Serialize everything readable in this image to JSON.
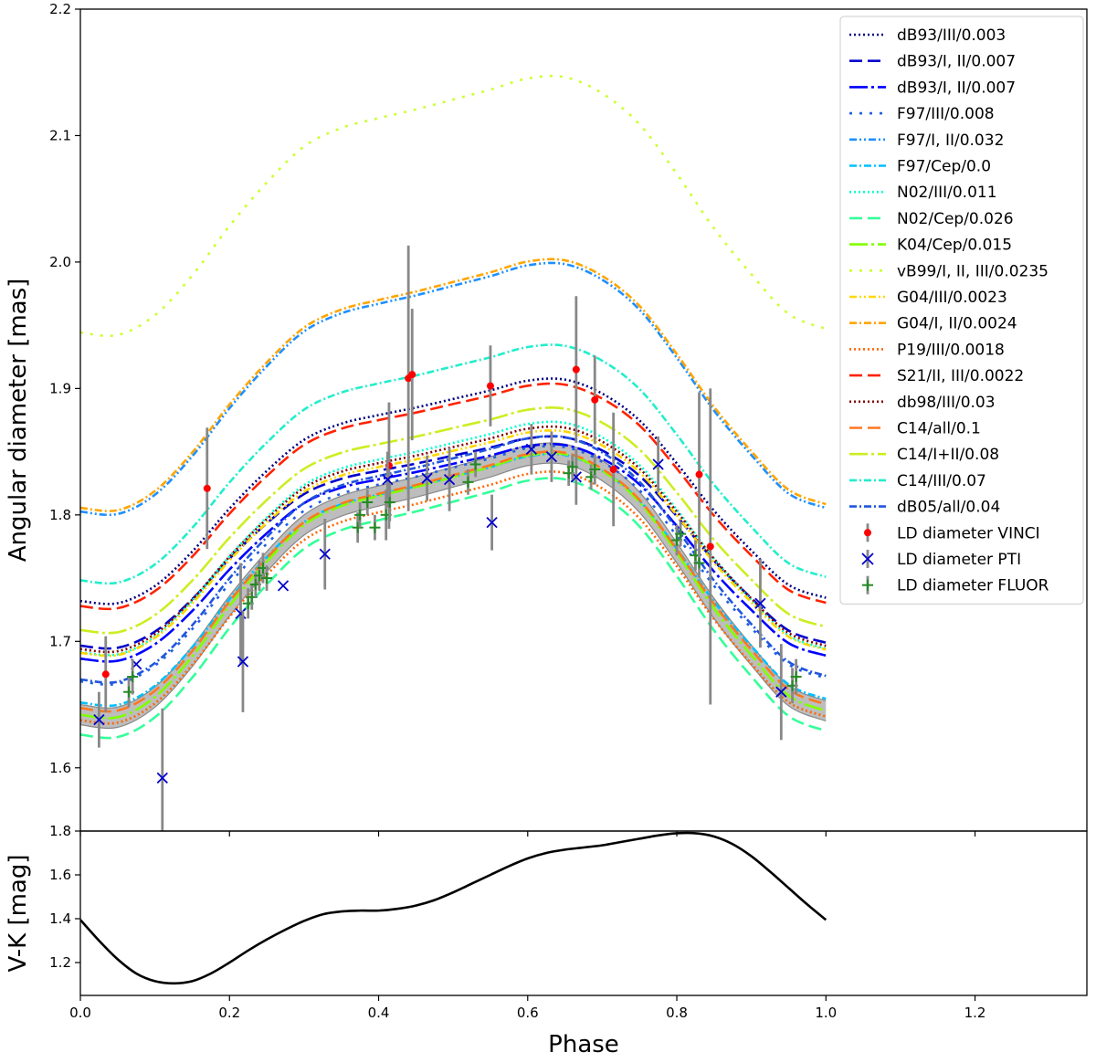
{
  "chart_data": [
    {
      "type": "line",
      "panel": "top",
      "xlabel": "",
      "ylabel": "Angular diameter [mas]",
      "xlim": [
        0.0,
        1.35
      ],
      "ylim": [
        1.55,
        2.2
      ],
      "yticks": [
        1.6,
        1.7,
        1.8,
        1.9,
        2.0,
        2.1,
        2.2
      ],
      "ytick_labels": [
        "1.6",
        "1.7",
        "1.8",
        "1.9",
        "2.0",
        "2.1",
        "2.2"
      ],
      "legend_position": "top-right",
      "base_curve": {
        "phase": [
          0.0,
          0.05,
          0.1,
          0.15,
          0.2,
          0.25,
          0.3,
          0.35,
          0.4,
          0.45,
          0.5,
          0.55,
          0.6,
          0.65,
          0.7,
          0.75,
          0.8,
          0.85,
          0.9,
          0.95,
          1.0
        ],
        "diameter": [
          1.642,
          1.64,
          1.656,
          1.688,
          1.728,
          1.763,
          1.792,
          1.807,
          1.815,
          1.822,
          1.83,
          1.838,
          1.847,
          1.848,
          1.835,
          1.81,
          1.77,
          1.726,
          1.689,
          1.657,
          1.645
        ]
      },
      "confidence_band": {
        "label": "",
        "half_width_mas": 0.008,
        "fill": "#bdbdbd",
        "edge": "#888888"
      },
      "series": [
        {
          "name": "dB93/III/0.003",
          "color": "#000080",
          "dash": "2,3",
          "width": 2.6,
          "offset": 0.073,
          "amp": 0.85
        },
        {
          "name": "dB93/I, II/0.007",
          "color": "#0000cd",
          "dash": "14,6",
          "width": 2.6,
          "offset": 0.032,
          "amp": 0.8
        },
        {
          "name": "dB93/I, II/0.007",
          "color": "#0000ff",
          "dash": "20,4,3,4",
          "width": 2.6,
          "offset": 0.024,
          "amp": 0.82
        },
        {
          "name": "F97/III/0.008",
          "color": "#1f5fe0",
          "dash": "3,8",
          "width": 2.6,
          "offset": 0.015,
          "amp": 0.9
        },
        {
          "name": "F97/I, II/0.032",
          "color": "#1e90ff",
          "dash": "8,3,2,3,2,3",
          "width": 2.6,
          "offset": 0.155,
          "amp": 0.95
        },
        {
          "name": "F97/Cep/0.0",
          "color": "#00bfff",
          "dash": "8,3,2,3",
          "width": 2.6,
          "offset": 0.004,
          "amp": 0.95
        },
        {
          "name": "N02/III/0.011",
          "color": "#00ffd0",
          "dash": "2,3",
          "width": 2.6,
          "offset": 0.036,
          "amp": 0.88
        },
        {
          "name": "N02/Cep/0.026",
          "color": "#33ff99",
          "dash": "14,6",
          "width": 2.6,
          "offset": -0.018,
          "amp": 0.98
        },
        {
          "name": "K04/Cep/0.015",
          "color": "#80ff00",
          "dash": "20,4,3,4",
          "width": 2.6,
          "offset": 0.0,
          "amp": 1.0
        },
        {
          "name": "vB99/I, II, III/0.0235",
          "color": "#ccff33",
          "dash": "3,8",
          "width": 2.6,
          "offset": 0.3,
          "amp": 0.98
        },
        {
          "name": "G04/III/0.0023",
          "color": "#ffd700",
          "dash": "8,3,2,3,2,3",
          "width": 2.6,
          "offset": 0.032,
          "amp": 0.85
        },
        {
          "name": "G04/I, II/0.0024",
          "color": "#ffa500",
          "dash": "8,3,2,3",
          "width": 2.6,
          "offset": 0.158,
          "amp": 0.95
        },
        {
          "name": "P19/III/0.0018",
          "color": "#ff6600",
          "dash": "2,3",
          "width": 2.6,
          "offset": -0.01,
          "amp": 0.95
        },
        {
          "name": "S21/II, III/0.0022",
          "color": "#ff2200",
          "dash": "14,6",
          "width": 2.6,
          "offset": 0.069,
          "amp": 0.85
        },
        {
          "name": "db98/III/0.03",
          "color": "#800000",
          "dash": "2,3",
          "width": 2.6,
          "offset": 0.035,
          "amp": 0.85
        },
        {
          "name": "C14/all/0.1",
          "color": "#ff7722",
          "dash": "14,6",
          "width": 2.6,
          "offset": 0.003,
          "amp": 0.98
        },
        {
          "name": "C14/I+II/0.08",
          "color": "#ccee22",
          "dash": "20,4,3,4",
          "width": 2.6,
          "offset": 0.05,
          "amp": 0.85
        },
        {
          "name": "C14/III/0.07",
          "color": "#22eecc",
          "dash": "8,3,2,3",
          "width": 2.6,
          "offset": 0.095,
          "amp": 0.9
        },
        {
          "name": "dB05/all/0.04",
          "color": "#2255dd",
          "dash": "8,3,2,3",
          "width": 2.6,
          "offset": 0.02,
          "amp": 0.93
        }
      ],
      "points": [
        {
          "name": "LD diameter VINCI",
          "marker": "dot",
          "color": "#ff0000",
          "x": [
            0.034,
            0.17,
            0.414,
            0.44,
            0.445,
            0.55,
            0.665,
            0.69,
            0.715,
            0.83,
            0.845
          ],
          "y": [
            1.674,
            1.821,
            1.839,
            1.908,
            1.911,
            1.902,
            1.915,
            1.891,
            1.836,
            1.832,
            1.775
          ],
          "err": [
            0.03,
            0.048,
            0.05,
            0.105,
            0.052,
            0.032,
            0.058,
            0.035,
            0.045,
            0.065,
            0.125
          ]
        },
        {
          "name": "LD diameter PTI",
          "marker": "x",
          "color": "#0000cd",
          "x": [
            0.025,
            0.075,
            0.11,
            0.215,
            0.218,
            0.272,
            0.328,
            0.412,
            0.465,
            0.495,
            0.552,
            0.605,
            0.632,
            0.665,
            0.775,
            0.912,
            0.94
          ],
          "y": [
            1.638,
            1.682,
            1.592,
            1.722,
            1.684,
            1.744,
            1.769,
            1.828,
            1.829,
            1.828,
            1.794,
            1.852,
            1.846,
            1.83,
            1.84,
            1.73,
            1.66
          ],
          "err": [
            0.022,
            0.018,
            0.055,
            0.04,
            0.04,
            0.02,
            0.028,
            0.022,
            0.018,
            0.025,
            0.022,
            0.02,
            0.02,
            0.022,
            0.022,
            0.035,
            0.038
          ],
          "skip_bars": [
            1,
            5
          ]
        },
        {
          "name": "LD diameter FLUOR",
          "marker": "plus",
          "color": "#228b22",
          "x": [
            0.065,
            0.07,
            0.225,
            0.23,
            0.235,
            0.24,
            0.245,
            0.25,
            0.372,
            0.375,
            0.385,
            0.395,
            0.41,
            0.415,
            0.52,
            0.53,
            0.655,
            0.66,
            0.685,
            0.69,
            0.8,
            0.805,
            0.825,
            0.83,
            0.955,
            0.96
          ],
          "y": [
            1.66,
            1.672,
            1.73,
            1.735,
            1.745,
            1.752,
            1.758,
            1.75,
            1.79,
            1.8,
            1.81,
            1.79,
            1.8,
            1.81,
            1.826,
            1.84,
            1.833,
            1.838,
            1.83,
            1.836,
            1.78,
            1.785,
            1.768,
            1.762,
            1.665,
            1.672
          ],
          "err": [
            0.012,
            0.014,
            0.012,
            0.01,
            0.01,
            0.012,
            0.012,
            0.01,
            0.012,
            0.01,
            0.01,
            0.01,
            0.02,
            0.015,
            0.01,
            0.01,
            0.01,
            0.01,
            0.01,
            0.012,
            0.012,
            0.01,
            0.012,
            0.012,
            0.014,
            0.014
          ]
        }
      ],
      "legend_entries": [
        "dB93/III/0.003",
        "dB93/I, II/0.007",
        "dB93/I, II/0.007",
        "F97/III/0.008",
        "F97/I, II/0.032",
        "F97/Cep/0.0",
        "N02/III/0.011",
        "N02/Cep/0.026",
        "K04/Cep/0.015",
        "vB99/I, II, III/0.0235",
        "G04/III/0.0023",
        "G04/I, II/0.0024",
        "P19/III/0.0018",
        "S21/II, III/0.0022",
        "db98/III/0.03",
        "C14/all/0.1",
        "C14/I+II/0.08",
        "C14/III/0.07",
        "dB05/all/0.04",
        "LD diameter VINCI",
        "LD diameter PTI",
        "LD diameter FLUOR"
      ]
    },
    {
      "type": "line",
      "panel": "bottom",
      "xlabel": "Phase",
      "ylabel": "V-K [mag]",
      "xlim": [
        0.0,
        1.35
      ],
      "ylim": [
        1.05,
        1.8
      ],
      "xticks": [
        0.0,
        0.2,
        0.4,
        0.6,
        0.8,
        1.0,
        1.2
      ],
      "xtick_labels": [
        "0.0",
        "0.2",
        "0.4",
        "0.6",
        "0.8",
        "1.0",
        "1.2"
      ],
      "yticks": [
        1.2,
        1.4,
        1.6,
        1.8
      ],
      "ytick_labels": [
        "1.2",
        "1.4",
        "1.6",
        "1.8"
      ],
      "series": [
        {
          "name": "V-K",
          "color": "#000000",
          "x": [
            0.0,
            0.025,
            0.05,
            0.075,
            0.1,
            0.125,
            0.15,
            0.175,
            0.2,
            0.225,
            0.25,
            0.275,
            0.3,
            0.325,
            0.35,
            0.375,
            0.4,
            0.425,
            0.45,
            0.475,
            0.5,
            0.525,
            0.55,
            0.575,
            0.6,
            0.625,
            0.65,
            0.675,
            0.7,
            0.725,
            0.75,
            0.775,
            0.8,
            0.825,
            0.85,
            0.875,
            0.9,
            0.925,
            0.95,
            0.975,
            1.0
          ],
          "y": [
            1.395,
            1.3,
            1.215,
            1.15,
            1.115,
            1.105,
            1.115,
            1.15,
            1.2,
            1.255,
            1.305,
            1.35,
            1.39,
            1.42,
            1.433,
            1.437,
            1.437,
            1.445,
            1.46,
            1.485,
            1.52,
            1.56,
            1.6,
            1.64,
            1.675,
            1.7,
            1.715,
            1.725,
            1.735,
            1.75,
            1.765,
            1.78,
            1.79,
            1.79,
            1.775,
            1.74,
            1.685,
            1.615,
            1.54,
            1.465,
            1.395
          ]
        }
      ]
    }
  ]
}
